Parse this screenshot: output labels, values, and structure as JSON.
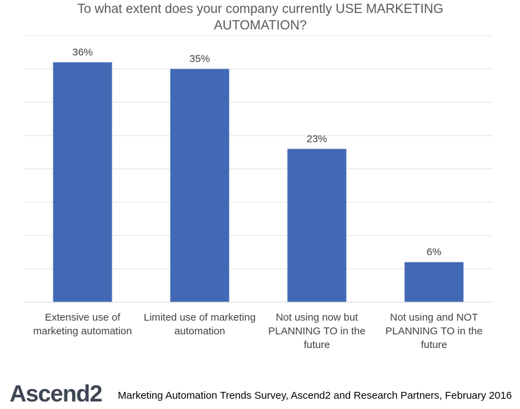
{
  "chart_data": {
    "type": "bar",
    "title": "To what extent does your company currently USE MARKETING AUTOMATION?",
    "categories": [
      "Extensive use of marketing automation",
      "Limited use of marketing automation",
      "Not using now but PLANNING TO in the future",
      "Not using and NOT PLANNING TO in the future"
    ],
    "values": [
      36,
      35,
      23,
      6
    ],
    "data_labels": [
      "36%",
      "35%",
      "23%",
      "6%"
    ],
    "ylim": [
      0,
      40
    ],
    "grid": true,
    "bar_color": "#4169b4"
  },
  "footer": {
    "logo_text": "Ascend2",
    "source": "Marketing Automation Trends Survey, Ascend2 and Research Partners, February 2016"
  }
}
